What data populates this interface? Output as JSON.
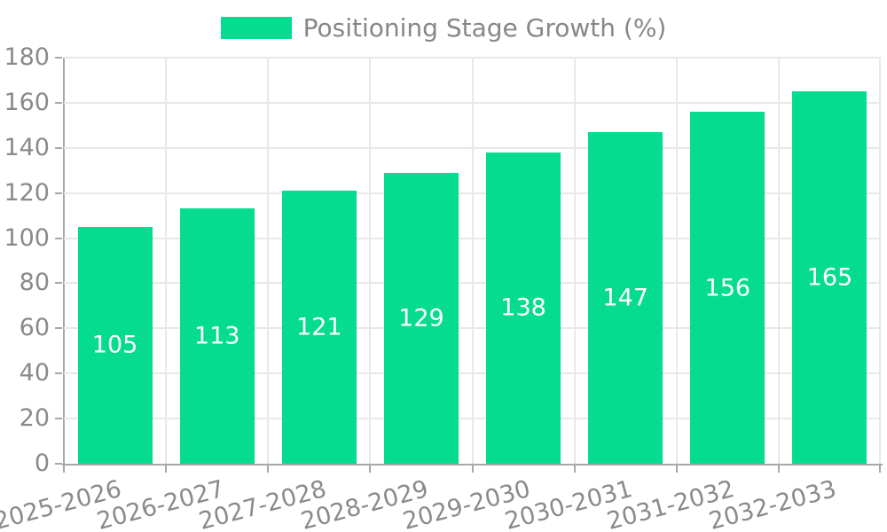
{
  "legend": {
    "label": "Positioning Stage Growth (%)"
  },
  "colors": {
    "bar": "#06DC8F",
    "grid": "#e8e8e8",
    "axis": "#a8a8a8",
    "tick_label": "#8a8a8a",
    "legend_label": "#878787",
    "value_label": "#ffffff",
    "background": "#ffffff"
  },
  "chart_data": {
    "type": "bar",
    "title": "Positioning Stage Growth (%)",
    "categories": [
      "2025-2026",
      "2026-2027",
      "2027-2028",
      "2028-2029",
      "2029-2030",
      "2030-2031",
      "2031-2032",
      "2032-2033"
    ],
    "series": [
      {
        "name": "Positioning Stage Growth (%)",
        "values": [
          105,
          113,
          121,
          129,
          138,
          147,
          156,
          165
        ]
      }
    ],
    "xlabel": "",
    "ylabel": "",
    "ylim": [
      0,
      180
    ],
    "yticks": [
      0,
      20,
      40,
      60,
      80,
      100,
      120,
      140,
      160,
      180
    ],
    "grid": true,
    "legend_position": "top-center",
    "value_label_position": "inside-middle",
    "x_tick_rotation_deg": -15
  }
}
